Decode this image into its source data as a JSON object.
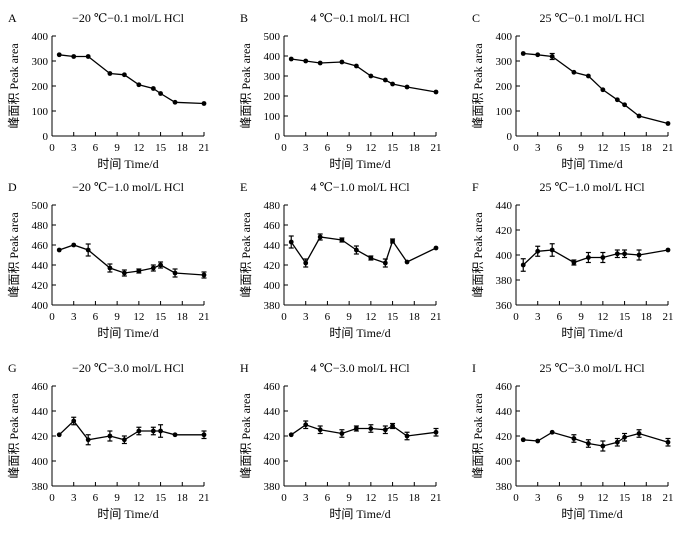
{
  "chart_data": [
    {
      "type": "line",
      "panel": "A",
      "title": "−20 ℃−0.1 mol/L HCl",
      "xlabel": "时间  Time/d",
      "ylabel": "峰面积  Peak area",
      "x_ticks": [
        0,
        3,
        6,
        9,
        12,
        15,
        18,
        21
      ],
      "y_ticks": [
        0,
        100,
        200,
        300,
        400
      ],
      "xlim": [
        0,
        21
      ],
      "ylim": [
        0,
        400
      ],
      "series": [
        {
          "x": [
            1,
            3,
            5,
            8,
            10,
            12,
            14,
            15,
            17,
            21
          ],
          "y": [
            325,
            318,
            318,
            250,
            245,
            205,
            190,
            170,
            135,
            130
          ],
          "err": [
            3,
            3,
            3,
            3,
            3,
            3,
            3,
            3,
            3,
            3
          ]
        }
      ]
    },
    {
      "type": "line",
      "panel": "B",
      "title": "4 ℃−0.1 mol/L HCl",
      "xlabel": "时间  Time/d",
      "ylabel": "峰面积  Peak area",
      "x_ticks": [
        0,
        3,
        6,
        9,
        12,
        15,
        18,
        21
      ],
      "y_ticks": [
        0,
        100,
        200,
        300,
        400,
        500
      ],
      "xlim": [
        0,
        21
      ],
      "ylim": [
        0,
        500
      ],
      "series": [
        {
          "x": [
            1,
            3,
            5,
            8,
            10,
            12,
            14,
            15,
            17,
            21
          ],
          "y": [
            385,
            375,
            365,
            370,
            350,
            300,
            280,
            260,
            245,
            220
          ],
          "err": [
            3,
            3,
            3,
            3,
            3,
            3,
            3,
            3,
            3,
            3
          ]
        }
      ]
    },
    {
      "type": "line",
      "panel": "C",
      "title": "25 ℃−0.1 mol/L HCl",
      "xlabel": "时间  Time/d",
      "ylabel": "峰面积  Peak area",
      "x_ticks": [
        0,
        3,
        6,
        9,
        12,
        15,
        18,
        21
      ],
      "y_ticks": [
        0,
        100,
        200,
        300,
        400
      ],
      "xlim": [
        0,
        21
      ],
      "ylim": [
        0,
        400
      ],
      "series": [
        {
          "x": [
            1,
            3,
            5,
            8,
            10,
            12,
            14,
            15,
            17,
            21
          ],
          "y": [
            330,
            325,
            318,
            255,
            240,
            185,
            145,
            125,
            80,
            50
          ],
          "err": [
            3,
            3,
            12,
            3,
            3,
            3,
            3,
            3,
            3,
            3
          ]
        }
      ]
    },
    {
      "type": "line",
      "panel": "D",
      "title": "−20 ℃−1.0 mol/L HCl",
      "xlabel": "时间  Time/d",
      "ylabel": "峰面积  Peak area",
      "x_ticks": [
        0,
        3,
        6,
        9,
        12,
        15,
        18,
        21
      ],
      "y_ticks": [
        400,
        420,
        440,
        460,
        480,
        500
      ],
      "xlim": [
        0,
        21
      ],
      "ylim": [
        400,
        500
      ],
      "series": [
        {
          "x": [
            1,
            3,
            5,
            8,
            10,
            12,
            14,
            15,
            17,
            21
          ],
          "y": [
            455,
            460,
            455,
            437,
            432,
            434,
            437,
            440,
            432,
            430
          ],
          "err": [
            1,
            1,
            6,
            4,
            3,
            2,
            3,
            3,
            4,
            3
          ]
        }
      ]
    },
    {
      "type": "line",
      "panel": "E",
      "title": "4 ℃−1.0 mol/L HCl",
      "xlabel": "时间  Time/d",
      "ylabel": "峰面积  Peak area",
      "x_ticks": [
        0,
        3,
        6,
        9,
        12,
        15,
        18,
        21
      ],
      "y_ticks": [
        380,
        400,
        420,
        440,
        460,
        480
      ],
      "xlim": [
        0,
        21
      ],
      "ylim": [
        380,
        480
      ],
      "series": [
        {
          "x": [
            1,
            3,
            5,
            8,
            10,
            12,
            14,
            15,
            17,
            21
          ],
          "y": [
            443,
            422,
            448,
            445,
            435,
            427,
            422,
            444,
            423,
            437
          ],
          "err": [
            6,
            4,
            3,
            2,
            4,
            2,
            4,
            2,
            1,
            1
          ]
        }
      ]
    },
    {
      "type": "line",
      "panel": "F",
      "title": "25 ℃−1.0 mol/L HCl",
      "xlabel": "时间  Time/d",
      "ylabel": "峰面积  Peak area",
      "x_ticks": [
        0,
        3,
        6,
        9,
        12,
        15,
        18,
        21
      ],
      "y_ticks": [
        360,
        380,
        400,
        420,
        440
      ],
      "xlim": [
        0,
        21
      ],
      "ylim": [
        360,
        440
      ],
      "series": [
        {
          "x": [
            1,
            3,
            5,
            8,
            10,
            12,
            14,
            15,
            17,
            21
          ],
          "y": [
            392,
            403,
            404,
            394,
            398,
            398,
            401,
            401,
            400,
            404
          ],
          "err": [
            5,
            4,
            5,
            2,
            4,
            4,
            3,
            3,
            4,
            1
          ]
        }
      ]
    },
    {
      "type": "line",
      "panel": "G",
      "title": "−20 ℃−3.0 mol/L HCl",
      "xlabel": "时间  Time/d",
      "ylabel": "峰面积  Peak area",
      "x_ticks": [
        0,
        3,
        6,
        9,
        12,
        15,
        18,
        21
      ],
      "y_ticks": [
        380,
        400,
        420,
        440,
        460
      ],
      "xlim": [
        0,
        21
      ],
      "ylim": [
        380,
        460
      ],
      "series": [
        {
          "x": [
            1,
            3,
            5,
            8,
            10,
            12,
            14,
            15,
            17,
            21
          ],
          "y": [
            421,
            432,
            417,
            420,
            417,
            424,
            424,
            424,
            421,
            421
          ],
          "err": [
            1,
            3,
            4,
            4,
            3,
            3,
            3,
            5,
            1,
            3
          ]
        }
      ]
    },
    {
      "type": "line",
      "panel": "H",
      "title": "4 ℃−3.0 mol/L HCl",
      "xlabel": "时间  Time/d",
      "ylabel": "峰面积  Peak area",
      "x_ticks": [
        0,
        3,
        6,
        9,
        12,
        15,
        18,
        21
      ],
      "y_ticks": [
        380,
        400,
        420,
        440,
        460
      ],
      "xlim": [
        0,
        21
      ],
      "ylim": [
        380,
        460
      ],
      "series": [
        {
          "x": [
            1,
            3,
            5,
            8,
            10,
            12,
            14,
            15,
            17,
            21
          ],
          "y": [
            421,
            429,
            425,
            422,
            426,
            426,
            425,
            428,
            420,
            423
          ],
          "err": [
            1,
            3,
            3,
            3,
            2,
            3,
            3,
            2,
            3,
            3
          ]
        }
      ]
    },
    {
      "type": "line",
      "panel": "I",
      "title": "25 ℃−3.0 mol/L HCl",
      "xlabel": "时间  Time/d",
      "ylabel": "峰面积  Peak area",
      "x_ticks": [
        0,
        3,
        6,
        9,
        12,
        15,
        18,
        21
      ],
      "y_ticks": [
        380,
        400,
        420,
        440,
        460
      ],
      "xlim": [
        0,
        21
      ],
      "ylim": [
        380,
        460
      ],
      "series": [
        {
          "x": [
            1,
            3,
            5,
            8,
            10,
            12,
            14,
            15,
            17,
            21
          ],
          "y": [
            417,
            416,
            423,
            418,
            414,
            412,
            415,
            419,
            422,
            415
          ],
          "err": [
            1,
            1,
            1,
            3,
            3,
            4,
            3,
            3,
            3,
            3
          ]
        }
      ]
    }
  ]
}
